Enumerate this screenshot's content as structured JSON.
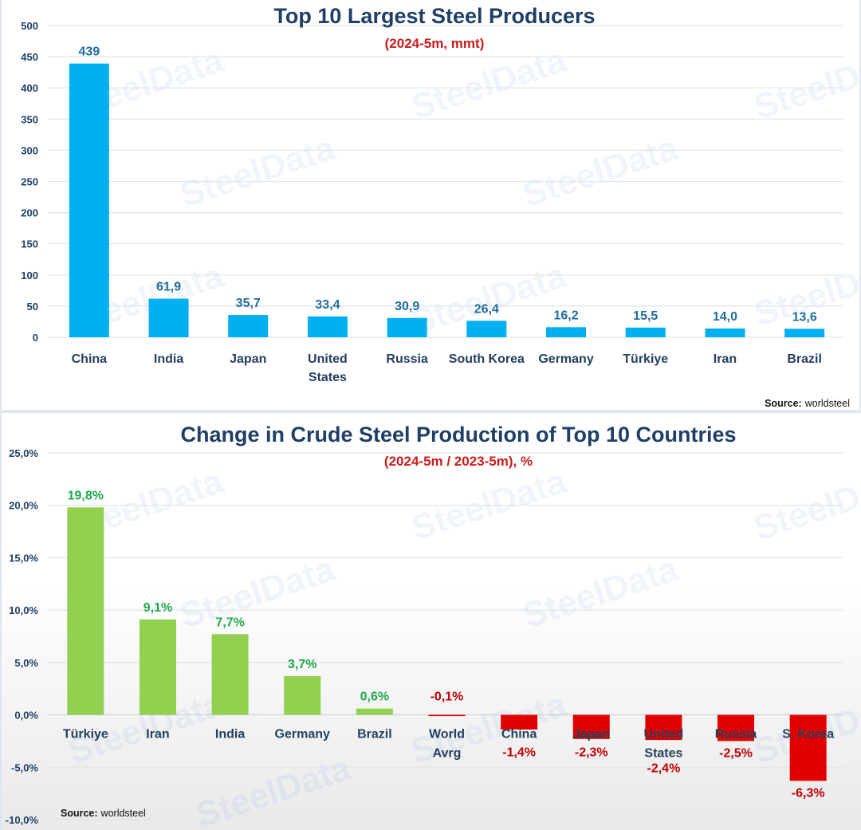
{
  "chart_data": [
    {
      "type": "bar",
      "title": "Top 10 Largest Steel Producers",
      "subtitle": "(2024-5m, mmt)",
      "xlabel": "",
      "ylabel": "",
      "categories": [
        "China",
        "India",
        "Japan",
        "United States",
        "Russia",
        "South Korea",
        "Germany",
        "Türkiye",
        "Iran",
        "Brazil"
      ],
      "category_lines": [
        [
          "China"
        ],
        [
          "India"
        ],
        [
          "Japan"
        ],
        [
          "United",
          "States"
        ],
        [
          "Russia"
        ],
        [
          "South Korea"
        ],
        [
          "Germany"
        ],
        [
          "Türkiye"
        ],
        [
          "Iran"
        ],
        [
          "Brazil"
        ]
      ],
      "values": [
        439,
        61.9,
        35.7,
        33.4,
        30.9,
        26.4,
        16.2,
        15.5,
        14.0,
        13.6
      ],
      "value_labels": [
        "439",
        "61,9",
        "35,7",
        "33,4",
        "30,9",
        "26,4",
        "16,2",
        "15,5",
        "14,0",
        "13,6"
      ],
      "ylim": [
        0,
        500
      ],
      "yticks": [
        0,
        50,
        100,
        150,
        200,
        250,
        300,
        350,
        400,
        450,
        500
      ],
      "ytick_labels": [
        "0",
        "50",
        "100",
        "150",
        "200",
        "250",
        "300",
        "350",
        "400",
        "450",
        "500"
      ],
      "grid": true,
      "bar_color": "#00b0f0",
      "label_color": "#1f6e9a",
      "source_label": "Source:",
      "source_value": "worldsteel"
    },
    {
      "type": "bar",
      "title": "Change in Crude Steel Production of Top 10 Countries",
      "subtitle": "(2024-5m / 2023-5m), %",
      "xlabel": "",
      "ylabel": "",
      "categories": [
        "Türkiye",
        "Iran",
        "India",
        "Germany",
        "Brazil",
        "World Avrg",
        "China",
        "Japan",
        "United States",
        "Russia",
        "S. Korea"
      ],
      "category_lines": [
        [
          "Türkiye"
        ],
        [
          "Iran"
        ],
        [
          "India"
        ],
        [
          "Germany"
        ],
        [
          "Brazil"
        ],
        [
          "World",
          "Avrg"
        ],
        [
          "China"
        ],
        [
          "Japan"
        ],
        [
          "United",
          "States"
        ],
        [
          "Russia"
        ],
        [
          "S. Korea"
        ]
      ],
      "values": [
        19.8,
        9.1,
        7.7,
        3.7,
        0.6,
        -0.1,
        -1.4,
        -2.3,
        -2.4,
        -2.5,
        -6.3
      ],
      "value_labels": [
        "19,8%",
        "9,1%",
        "7,7%",
        "3,7%",
        "0,6%",
        "-0,1%",
        "-1,4%",
        "-2,3%",
        "-2,4%",
        "-2,5%",
        "-6,3%"
      ],
      "ylim": [
        -10,
        25
      ],
      "yticks": [
        -10,
        -5,
        0,
        5,
        10,
        15,
        20,
        25
      ],
      "ytick_labels": [
        "-10,0%",
        "-5,0%",
        "0,0%",
        "5,0%",
        "10,0%",
        "15,0%",
        "20,0%",
        "25,0%"
      ],
      "grid": true,
      "positive_color": "#92d050",
      "negative_color": "#e00000",
      "positive_label_color": "#1faa4a",
      "negative_label_color": "#c00000",
      "source_label": "Source:",
      "source_value": "worldsteel"
    }
  ],
  "watermark_text": "SteelData"
}
